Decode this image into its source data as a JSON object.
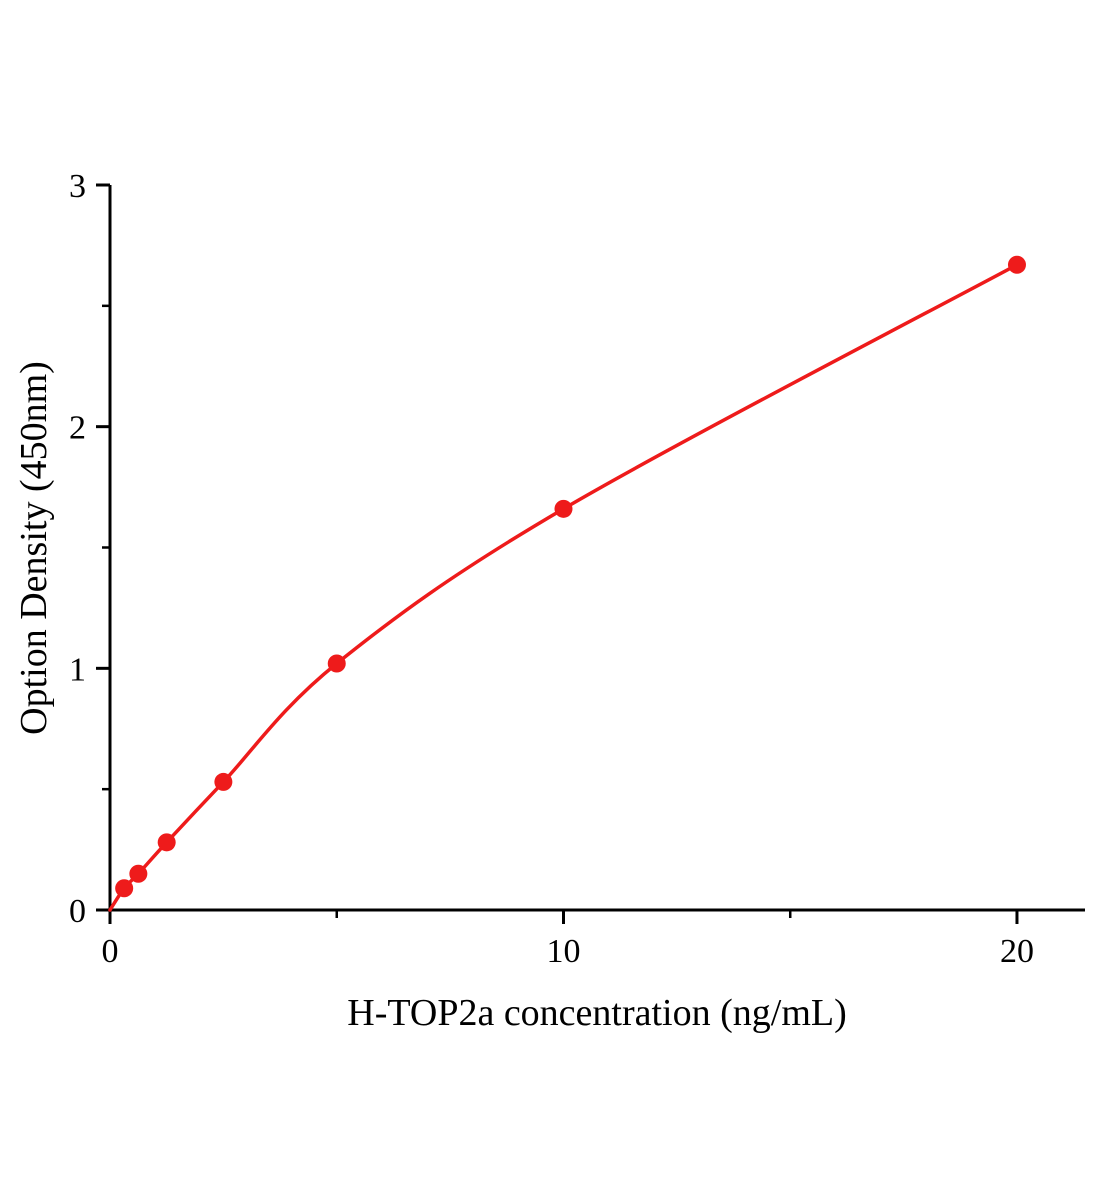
{
  "chart_data": {
    "type": "scatter",
    "title": "",
    "xlabel": "H-TOP2a concentration (ng/mL)",
    "ylabel": "Option Density (450nm)",
    "series": [
      {
        "x": [
          0.3125,
          0.625,
          1.25,
          2.5,
          5,
          10,
          20
        ],
        "y": [
          0.09,
          0.15,
          0.28,
          0.53,
          1.02,
          1.66,
          2.67
        ],
        "marker": "circle",
        "marker_color": "#ee1b1b"
      }
    ],
    "fit_curve": {
      "style": "smooth",
      "start_point": [
        0,
        0
      ],
      "color": "#ee1b1b"
    },
    "xlim": [
      0,
      21.5
    ],
    "ylim": [
      0,
      3
    ],
    "x_major_ticks": [
      0,
      10,
      20
    ],
    "x_minor_ticks": [
      5,
      15
    ],
    "y_major_ticks": [
      0,
      1,
      2,
      3
    ],
    "y_minor_ticks": [
      0.5,
      1.5,
      2.5
    ],
    "grid": false,
    "legend_position": "none",
    "axis_color": "#000000",
    "background_color": "#ffffff"
  }
}
